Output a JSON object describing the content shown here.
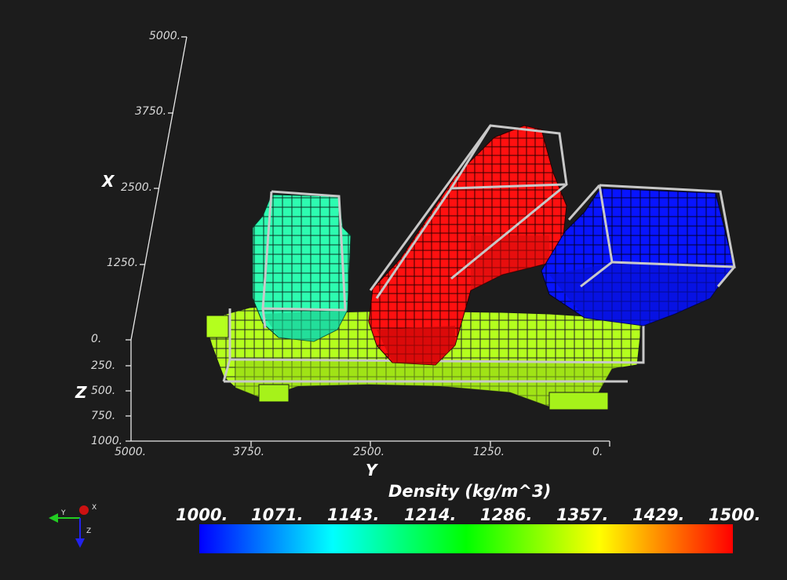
{
  "axes": {
    "x": {
      "name": "X",
      "ticks": [
        "5000.",
        "3750.",
        "2500.",
        "1250.",
        "0."
      ]
    },
    "y": {
      "name": "Y",
      "ticks": [
        "5000.",
        "3750.",
        "2500.",
        "1250.",
        "0."
      ]
    },
    "z": {
      "name": "Z",
      "ticks": [
        "250.",
        "500.",
        "750.",
        "1000."
      ]
    }
  },
  "colorbar": {
    "title": "Density (kg/m^3)",
    "ticks": [
      "1000.",
      "1071.",
      "1143.",
      "1214.",
      "1286.",
      "1357.",
      "1429.",
      "1500."
    ],
    "range": [
      1000,
      1500
    ],
    "colormap": [
      "#0000ff",
      "#00ffff",
      "#00ff00",
      "#ffff00",
      "#ff0000"
    ]
  },
  "bodies": [
    {
      "id": "green-body",
      "density": 1300,
      "color": "#b4ff1e"
    },
    {
      "id": "teal-body",
      "density": 1120,
      "color": "#2dfcb0"
    },
    {
      "id": "red-body",
      "density": 1500,
      "color": "#ff1010"
    },
    {
      "id": "blue-body",
      "density": 1000,
      "color": "#0814ff"
    }
  ],
  "orientation_widget": {
    "labels": [
      "Y",
      "X",
      "Z"
    ]
  }
}
